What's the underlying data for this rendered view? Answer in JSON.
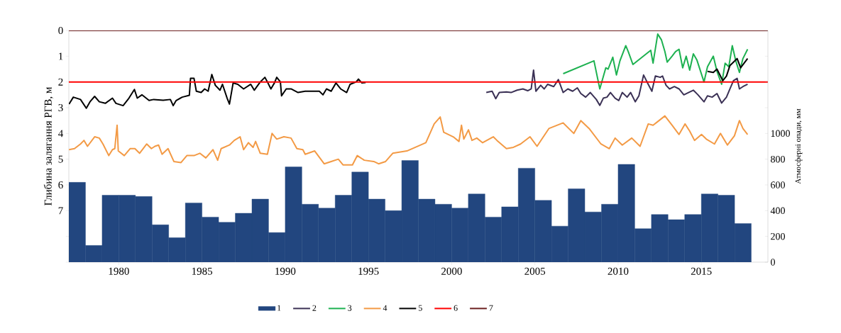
{
  "chart_data": {
    "type": "line",
    "ylabel": "Глибина залягання РГВ, м",
    "y2label": "Атмосферні опади, мм",
    "xlim": [
      1977,
      2019
    ],
    "xticks": [
      1980,
      1985,
      1990,
      1995,
      2000,
      2005,
      2010,
      2015
    ],
    "ylim": [
      9,
      0
    ],
    "yticks": [
      0,
      1,
      2,
      3,
      4,
      5,
      6,
      7,
      {
        "value": 8,
        "label": null
      },
      {
        "value": 9,
        "label": null
      }
    ],
    "y2lim": [
      0,
      1800
    ],
    "y2ticks": [
      0,
      200,
      400,
      600,
      800,
      1000,
      {
        "value": 1200,
        "label": null
      },
      {
        "value": 1400,
        "label": null
      },
      {
        "value": 1600,
        "label": null
      },
      {
        "value": 1800,
        "label": null
      }
    ],
    "legend": "bottom",
    "series": [
      {
        "name": "1",
        "type": "bar",
        "axis": "y2",
        "color": "#22467f",
        "x": [
          1977.5,
          1978.5,
          1979.5,
          1980.5,
          1981.5,
          1982.5,
          1983.5,
          1984.5,
          1985.5,
          1986.5,
          1987.5,
          1988.5,
          1989.5,
          1990.5,
          1991.5,
          1992.5,
          1993.5,
          1994.5,
          1995.5,
          1996.5,
          1997.5,
          1998.5,
          1999.5,
          2000.5,
          2001.5,
          2002.5,
          2003.5,
          2004.5,
          2005.5,
          2006.5,
          2007.5,
          2008.5,
          2009.5,
          2010.5,
          2011.5,
          2012.5,
          2013.5,
          2014.5,
          2015.5,
          2016.5,
          2017.5
        ],
        "values": [
          620,
          130,
          520,
          520,
          510,
          290,
          190,
          460,
          350,
          310,
          380,
          490,
          230,
          740,
          450,
          420,
          520,
          700,
          490,
          400,
          790,
          490,
          450,
          420,
          530,
          350,
          430,
          730,
          480,
          280,
          570,
          390,
          450,
          760,
          260,
          370,
          330,
          370,
          530,
          520,
          300
        ]
      },
      {
        "name": "2",
        "color": "#3b3155",
        "x": [
          2002.08,
          2002.43,
          2002.65,
          2002.86,
          2003.29,
          2003.57,
          2003.93,
          2004.28,
          2004.57,
          2004.78,
          2004.92,
          2005.06,
          2005.35,
          2005.56,
          2005.77,
          2006.13,
          2006.41,
          2006.7,
          2006.98,
          2007.27,
          2007.55,
          2007.76,
          2008.05,
          2008.33,
          2008.69,
          2008.9,
          2009.11,
          2009.33,
          2009.54,
          2009.82,
          2010.04,
          2010.25,
          2010.54,
          2010.75,
          2011.03,
          2011.25,
          2011.53,
          2011.81,
          2012.03,
          2012.24,
          2012.53,
          2012.67,
          2012.88,
          2013.09,
          2013.38,
          2013.66,
          2013.95,
          2014.23,
          2014.52,
          2014.8,
          2015.16,
          2015.37,
          2015.65,
          2015.94,
          2016.22,
          2016.51,
          2016.72,
          2016.93,
          2017.15,
          2017.29,
          2017.5,
          2017.78
        ],
        "values": [
          2.41,
          2.36,
          2.65,
          2.41,
          2.39,
          2.41,
          2.32,
          2.27,
          2.34,
          2.27,
          1.54,
          2.36,
          2.13,
          2.27,
          2.09,
          2.18,
          1.91,
          2.41,
          2.27,
          2.36,
          2.23,
          2.45,
          2.59,
          2.41,
          2.68,
          2.91,
          2.63,
          2.59,
          2.41,
          2.63,
          2.72,
          2.41,
          2.59,
          2.41,
          2.77,
          2.54,
          1.73,
          2.09,
          2.36,
          1.77,
          1.82,
          1.77,
          2.13,
          2.27,
          2.18,
          2.27,
          2.5,
          2.41,
          2.32,
          2.5,
          2.77,
          2.54,
          2.59,
          2.45,
          2.82,
          2.59,
          2.27,
          1.95,
          1.86,
          2.27,
          2.18,
          2.09
        ]
      },
      {
        "name": "3",
        "color": "#1db150",
        "x": [
          2006.7,
          2008.55,
          2008.9,
          2009.26,
          2009.4,
          2009.68,
          2009.9,
          2010.11,
          2010.46,
          2010.61,
          2010.89,
          2011.96,
          2012.1,
          2012.38,
          2012.6,
          2012.81,
          2012.95,
          2013.24,
          2013.45,
          2013.66,
          2013.88,
          2014.09,
          2014.3,
          2014.52,
          2014.73,
          2015.16,
          2015.37,
          2015.72,
          2015.94,
          2016.22,
          2016.43,
          2016.65,
          2016.86,
          2017.07,
          2017.29,
          2017.5,
          2017.78
        ],
        "values": [
          1.68,
          1.18,
          2.27,
          1.45,
          1.5,
          1.04,
          1.73,
          1.18,
          0.59,
          0.82,
          1.32,
          0.77,
          1.27,
          0.14,
          0.36,
          0.82,
          1.23,
          1.0,
          0.82,
          0.73,
          1.45,
          1.0,
          1.54,
          0.91,
          1.14,
          2.0,
          1.41,
          1.0,
          1.59,
          2.09,
          1.27,
          1.41,
          0.59,
          1.18,
          1.63,
          1.09,
          0.73
        ]
      },
      {
        "name": "4",
        "color": "#f39a45",
        "x": [
          1977.01,
          1977.34,
          1977.7,
          1977.91,
          1978.12,
          1978.55,
          1978.83,
          1979.05,
          1979.4,
          1979.62,
          1979.76,
          1979.9,
          1979.97,
          1980.33,
          1980.68,
          1980.97,
          1981.25,
          1981.68,
          1981.96,
          1982.17,
          1982.39,
          1982.6,
          1982.96,
          1983.31,
          1983.74,
          1984.09,
          1984.52,
          1984.87,
          1985.23,
          1985.66,
          1985.94,
          1986.15,
          1986.65,
          1986.94,
          1987.29,
          1987.5,
          1987.79,
          1988.07,
          1988.22,
          1988.5,
          1988.93,
          1989.21,
          1989.49,
          1989.92,
          1990.35,
          1990.7,
          1991.06,
          1991.2,
          1991.77,
          1992.34,
          1992.76,
          1993.19,
          1993.47,
          1994.04,
          1994.33,
          1994.75,
          1995.32,
          1995.61,
          1996.03,
          1996.46,
          1997.31,
          1998.45,
          1998.95,
          1999.31,
          1999.52,
          2000.09,
          2000.44,
          2000.59,
          2000.73,
          2001.01,
          2001.22,
          2001.51,
          2001.86,
          2002.5,
          2002.72,
          2003.29,
          2003.71,
          2004.14,
          2004.71,
          2005.13,
          2005.84,
          2006.7,
          2007.34,
          2007.76,
          2008.26,
          2008.97,
          2009.47,
          2009.82,
          2010.25,
          2010.82,
          2011.32,
          2011.81,
          2012.1,
          2012.38,
          2012.81,
          2013.24,
          2013.66,
          2014.02,
          2014.3,
          2014.59,
          2015.01,
          2015.3,
          2015.79,
          2016.15,
          2016.57,
          2016.99,
          2017.29,
          2017.5,
          2017.78
        ],
        "values": [
          4.63,
          4.59,
          4.41,
          4.27,
          4.5,
          4.13,
          4.18,
          4.41,
          4.86,
          4.63,
          4.59,
          3.68,
          4.68,
          4.86,
          4.59,
          4.59,
          4.77,
          4.41,
          4.59,
          4.5,
          4.45,
          4.81,
          4.59,
          5.09,
          5.13,
          4.86,
          4.86,
          4.77,
          4.95,
          4.63,
          5.04,
          4.59,
          4.45,
          4.27,
          4.13,
          4.63,
          4.36,
          4.54,
          4.31,
          4.77,
          4.81,
          4.0,
          4.22,
          4.13,
          4.18,
          4.59,
          4.63,
          4.81,
          4.68,
          5.18,
          5.09,
          5.0,
          5.22,
          5.22,
          4.86,
          5.04,
          5.09,
          5.18,
          5.09,
          4.77,
          4.68,
          4.36,
          3.63,
          3.36,
          3.95,
          4.13,
          4.31,
          3.68,
          4.22,
          3.86,
          4.27,
          4.18,
          4.36,
          4.13,
          4.27,
          4.59,
          4.54,
          4.41,
          4.13,
          4.5,
          3.81,
          3.59,
          4.0,
          3.5,
          3.81,
          4.41,
          4.59,
          4.18,
          4.45,
          4.18,
          4.5,
          3.63,
          3.68,
          3.54,
          3.32,
          3.68,
          4.04,
          3.63,
          3.91,
          4.27,
          4.04,
          4.22,
          4.41,
          4.0,
          4.45,
          4.09,
          3.5,
          3.81,
          4.04
        ]
      },
      {
        "name": "5",
        "color": "#000000",
        "x": [
          1977.01,
          1977.27,
          1977.7,
          1978.05,
          1978.27,
          1978.55,
          1978.83,
          1979.19,
          1979.62,
          1979.83,
          1980.26,
          1980.61,
          1980.94,
          1981.11,
          1981.39,
          1981.82,
          1982.1,
          1982.67,
          1983.1,
          1983.27,
          1983.45,
          1983.81,
          1984.24,
          1984.31,
          1984.52,
          1984.66,
          1984.95,
          1985.16,
          1985.37,
          1985.59,
          1985.8,
          1986.08,
          1986.23,
          1986.51,
          1986.65,
          1986.87,
          1987.15,
          1987.5,
          1987.93,
          1988.14,
          1988.5,
          1988.78,
          1988.93,
          1989.14,
          1989.35,
          1989.49,
          1989.71,
          1989.78,
          1990.06,
          1990.35,
          1990.77,
          1991.2,
          1992.05,
          1992.27,
          1992.48,
          1992.76,
          1993.05,
          1993.33,
          1993.69,
          1993.9,
          1994.26,
          1994.4,
          1994.61,
          1994.83,
          2005,
          2015.37,
          2015.72,
          2015.94,
          2016.29,
          2016.51,
          2016.72,
          2016.93,
          2017.15,
          2017.36,
          2017.57,
          2017.78
        ],
        "values": [
          2.86,
          2.59,
          2.68,
          3.02,
          2.77,
          2.56,
          2.77,
          2.83,
          2.63,
          2.83,
          2.92,
          2.63,
          2.29,
          2.63,
          2.5,
          2.72,
          2.68,
          2.71,
          2.68,
          2.92,
          2.72,
          2.59,
          2.52,
          1.86,
          1.86,
          2.36,
          2.41,
          2.27,
          2.36,
          1.71,
          2.13,
          2.32,
          2.09,
          2.63,
          2.86,
          2.04,
          2.09,
          2.27,
          2.09,
          2.32,
          2.0,
          1.82,
          2.0,
          2.27,
          2.04,
          1.82,
          2.0,
          2.54,
          2.27,
          2.27,
          2.41,
          2.36,
          2.36,
          2.5,
          2.27,
          2.36,
          2.04,
          2.27,
          2.41,
          2.09,
          2.0,
          1.89,
          2.04,
          2.02,
          null,
          1.59,
          1.63,
          1.5,
          1.95,
          1.77,
          1.36,
          1.23,
          1.09,
          1.45,
          1.27,
          1.09
        ]
      },
      {
        "name": "6",
        "color": "#ff0000",
        "x": [
          1977,
          2019
        ],
        "values": [
          2,
          2
        ]
      },
      {
        "name": "7",
        "color": "#6b1f1f",
        "x": [
          1977,
          2019
        ],
        "values": [
          0,
          0
        ]
      }
    ]
  }
}
